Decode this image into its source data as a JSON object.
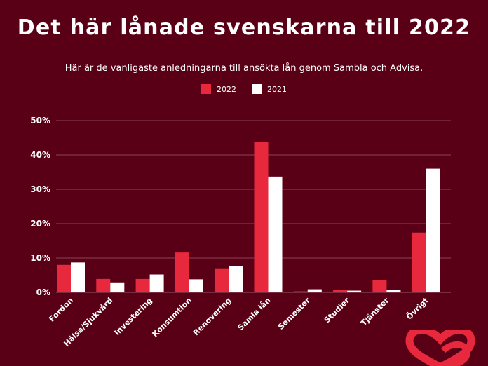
{
  "colors": {
    "background": "#5a0016",
    "series_2022": "#e8283d",
    "series_2021": "#ffffff",
    "grid": "#8a4556",
    "text": "#ffffff",
    "logo": "#e8283d"
  },
  "header": {
    "title": "Det här lånade svenskarna till 2022",
    "subtitle": "Här är de vanligaste anledningarna till ansökta lån genom Sambla och Advisa."
  },
  "chart_data": {
    "type": "bar",
    "title": "Det här lånade svenskarna till 2022",
    "subtitle": "Här är de vanligaste anledningarna till ansökta lån genom Sambla och Advisa.",
    "xlabel": "",
    "ylabel": "",
    "ylim": [
      0,
      50
    ],
    "yticks": [
      "0%",
      "10%",
      "20%",
      "30%",
      "40%",
      "50%"
    ],
    "ytick_values": [
      0,
      10,
      20,
      30,
      40,
      50
    ],
    "grid": true,
    "legend_position": "top-center",
    "categories": [
      "Fordon",
      "Hälsa/Sjukvård",
      "Investering",
      "Konsumtion",
      "Renovering",
      "Samla lån",
      "Semester",
      "Studier",
      "Tjänster",
      "Övrigt"
    ],
    "series": [
      {
        "name": "2022",
        "values": [
          8.0,
          3.9,
          3.9,
          11.6,
          7.0,
          43.8,
          0.3,
          0.7,
          3.5,
          17.4
        ]
      },
      {
        "name": "2021",
        "values": [
          8.7,
          2.9,
          5.2,
          3.8,
          7.7,
          33.7,
          0.9,
          0.5,
          0.7,
          36.0
        ]
      }
    ]
  },
  "logo": {
    "icon": "sambla-heart-logo-icon"
  }
}
